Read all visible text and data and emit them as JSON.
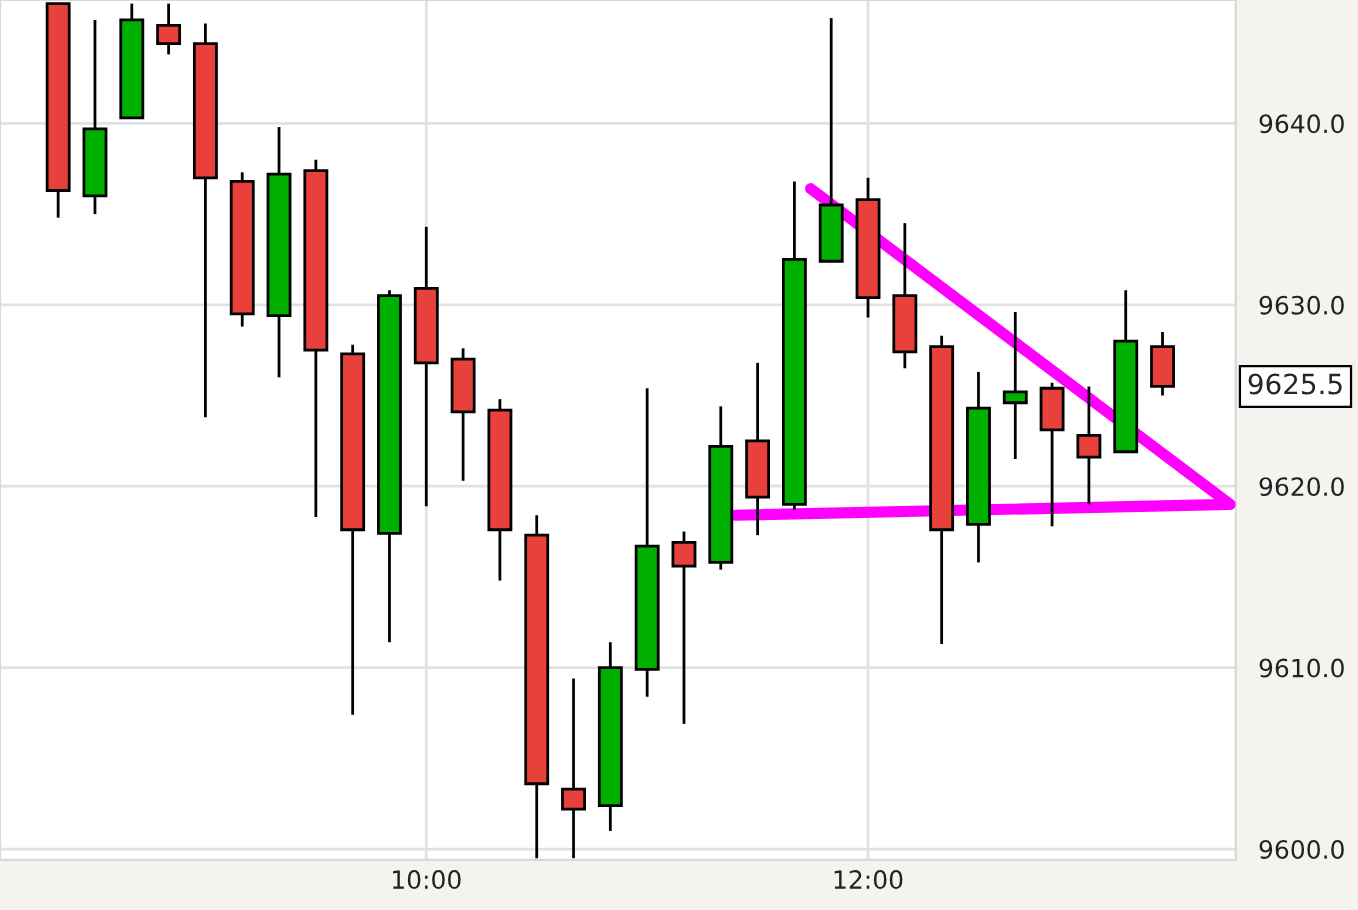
{
  "chart_data": {
    "type": "candlestick",
    "x": [
      8.3333,
      8.5,
      8.6667,
      8.8333,
      9,
      9.1667,
      9.3333,
      9.5,
      9.6667,
      9.8333,
      10,
      10.1667,
      10.3333,
      10.5,
      10.6667,
      10.8333,
      11,
      11.1667,
      11.3333,
      11.5,
      11.6667,
      11.8333,
      12,
      12.1667,
      12.3333,
      12.5,
      12.6667,
      12.8333,
      13,
      13.1667,
      13.3333
    ],
    "ohlc": [
      [
        9646.6,
        9646.6,
        9634.8,
        9636.3
      ],
      [
        9636.0,
        9645.7,
        9635.0,
        9639.7
      ],
      [
        9640.3,
        9646.6,
        9640.3,
        9645.7
      ],
      [
        9645.4,
        9646.6,
        9643.8,
        9644.4
      ],
      [
        9644.4,
        9645.5,
        9623.8,
        9637.0
      ],
      [
        9636.8,
        9637.3,
        9628.8,
        9629.5
      ],
      [
        9629.4,
        9639.8,
        9626.0,
        9637.2
      ],
      [
        9637.4,
        9638.0,
        9618.3,
        9627.5
      ],
      [
        9627.3,
        9627.8,
        9607.4,
        9617.6
      ],
      [
        9617.4,
        9630.8,
        9611.4,
        9630.5
      ],
      [
        9630.9,
        9634.3,
        9618.9,
        9626.8
      ],
      [
        9627.0,
        9627.6,
        9620.3,
        9624.1
      ],
      [
        9624.2,
        9624.8,
        9614.8,
        9617.6
      ],
      [
        9617.3,
        9618.4,
        9599.5,
        9603.6
      ],
      [
        9603.3,
        9609.4,
        9599.5,
        9602.2
      ],
      [
        9602.4,
        9611.4,
        9601.0,
        9610.0
      ],
      [
        9609.9,
        9625.4,
        9608.4,
        9616.7
      ],
      [
        9616.9,
        9617.5,
        9606.9,
        9615.6
      ],
      [
        9615.8,
        9624.4,
        9615.4,
        9622.2
      ],
      [
        9622.5,
        9626.8,
        9617.3,
        9619.4
      ],
      [
        9619.0,
        9636.8,
        9618.7,
        9632.5
      ],
      [
        9632.4,
        9645.8,
        9632.4,
        9635.5
      ],
      [
        9635.8,
        9637.0,
        9629.3,
        9630.4
      ],
      [
        9630.5,
        9634.5,
        9626.5,
        9627.4
      ],
      [
        9627.7,
        9628.3,
        9611.3,
        9617.6
      ],
      [
        9617.9,
        9626.3,
        9615.8,
        9624.3
      ],
      [
        9624.6,
        9629.6,
        9621.5,
        9625.2
      ],
      [
        9625.4,
        9625.7,
        9617.8,
        9623.1
      ],
      [
        9622.8,
        9625.5,
        9619.0,
        9621.6
      ],
      [
        9621.9,
        9630.8,
        9621.9,
        9628.0
      ],
      [
        9627.7,
        9628.5,
        9625.0,
        9625.5
      ]
    ],
    "colors": [
      "#e8403a",
      "#00b000",
      "#00b000",
      "#e8403a",
      "#e8403a",
      "#e8403a",
      "#00b000",
      "#e8403a",
      "#e8403a",
      "#00b000",
      "#e8403a",
      "#e8403a",
      "#e8403a",
      "#e8403a",
      "#e8403a",
      "#00b000",
      "#00b000",
      "#e8403a",
      "#00b000",
      "#e8403a",
      "#00b000",
      "#00b000",
      "#e8403a",
      "#e8403a",
      "#e8403a",
      "#00b000",
      "#00b000",
      "#e8403a",
      "#e8403a",
      "#00b000",
      "#e8403a"
    ],
    "series": [
      {
        "type": "line",
        "color": "#ff00ff",
        "x": [
          11.74,
          13.64,
          11.4
        ],
        "values": [
          9636.4,
          9619.0,
          9618.4
        ]
      }
    ],
    "annotations": [
      "9625.5"
    ],
    "xlim": [
      8.07,
      13.665
    ],
    "xticks": [
      {
        "value": 10,
        "label": "10:00"
      },
      {
        "value": 12,
        "label": "12:00"
      }
    ],
    "ylim": [
      9599.4,
      9646.8
    ],
    "yticks": [
      {
        "value": 9600,
        "label": "9600.0"
      },
      {
        "value": 9610,
        "label": "9610.0"
      },
      {
        "value": 9620,
        "label": "9620.0"
      },
      {
        "value": 9630,
        "label": "9630.0"
      },
      {
        "value": 9640,
        "label": "9640.0"
      }
    ],
    "grid": true
  }
}
